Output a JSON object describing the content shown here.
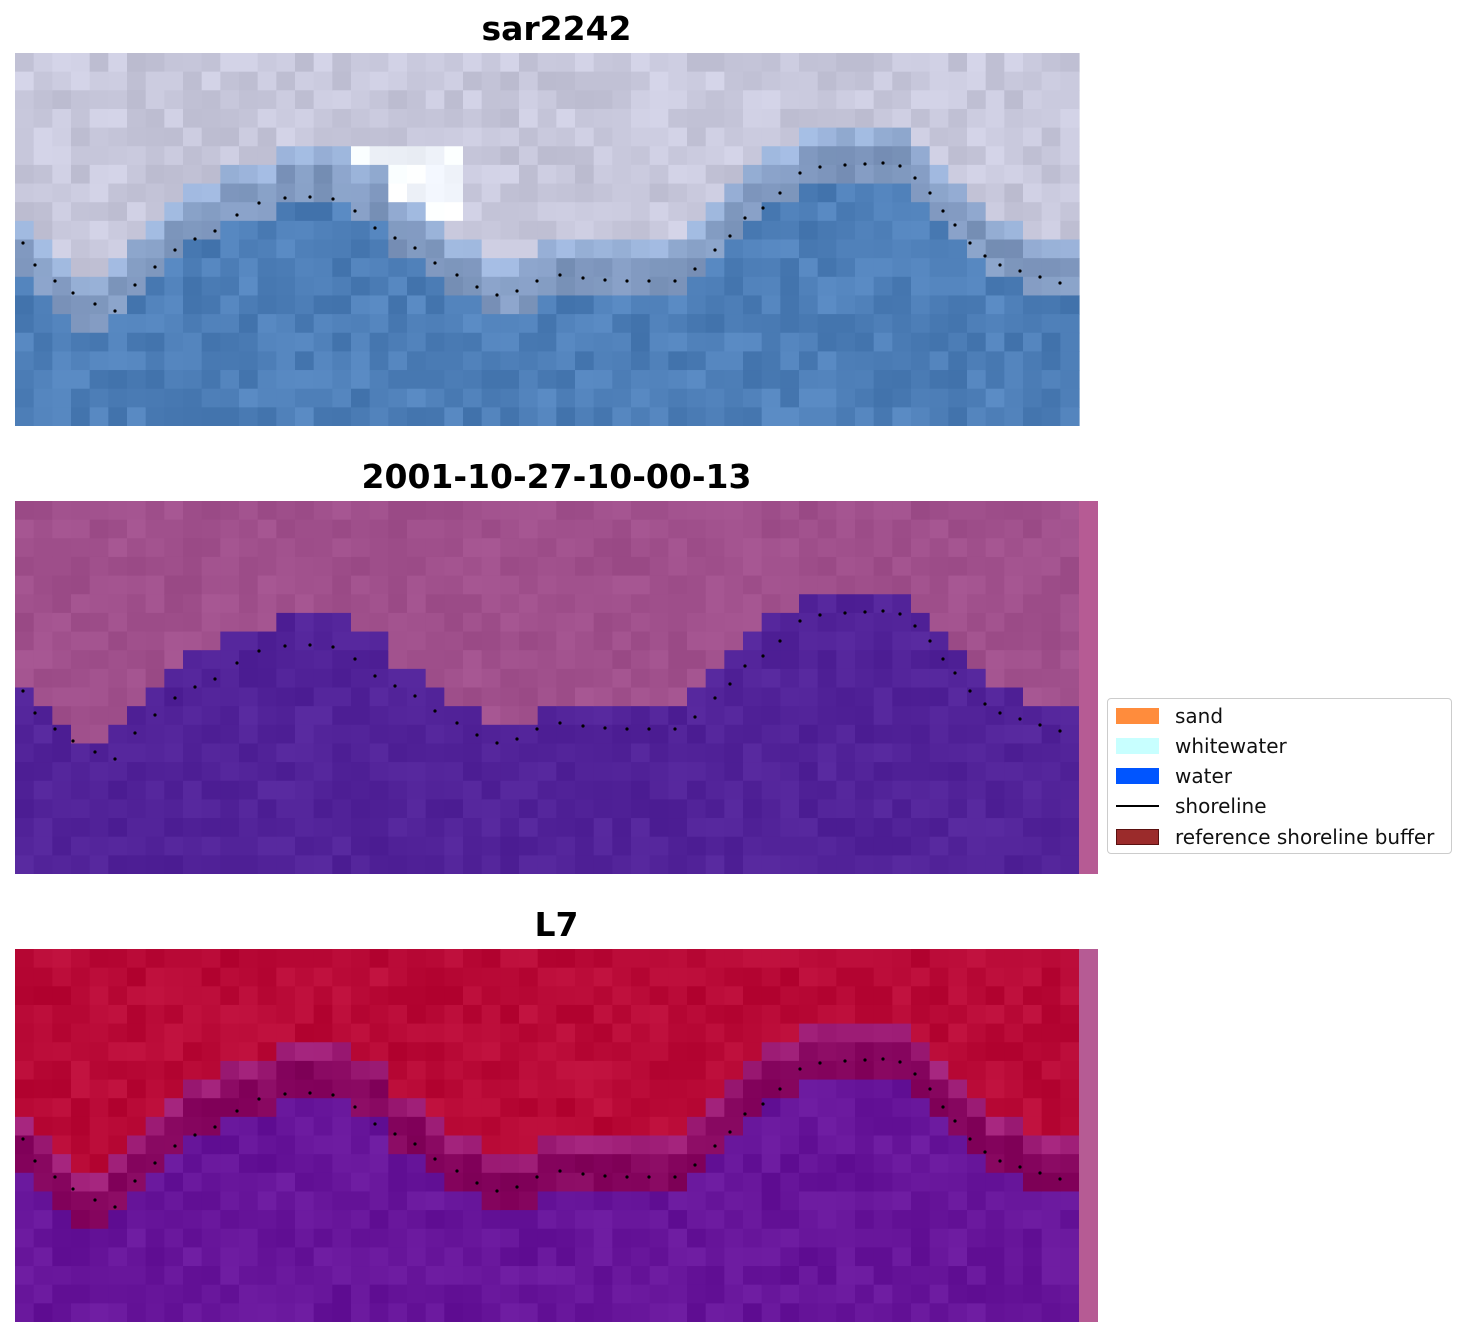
{
  "panels": [
    {
      "title": "sar2242",
      "kind": "rgb"
    },
    {
      "title": "2001-10-27-10-00-13",
      "kind": "classified"
    },
    {
      "title": "L7",
      "kind": "index"
    }
  ],
  "legend": {
    "items": [
      {
        "label": "sand",
        "color": "#ff8c3c",
        "type": "patch"
      },
      {
        "label": "whitewater",
        "color": "#c8ffff",
        "type": "patch"
      },
      {
        "label": "water",
        "color": "#0055ff",
        "type": "patch"
      },
      {
        "label": "shoreline",
        "color": "#000000",
        "type": "line"
      },
      {
        "label": "reference shoreline buffer",
        "color": "#9b2b2b",
        "type": "patch"
      }
    ]
  },
  "colors": {
    "rgb_land": "#c8c8dc",
    "rgb_water": "#4e7fb8",
    "rgb_whitewater": "#f4f8ff",
    "classified_land": "#a0508c",
    "classified_water": "#522399",
    "index_land": "#b90a37",
    "index_water": "#67159a",
    "side_strip": "#b65b94",
    "shoreline_dots": "#000000"
  }
}
